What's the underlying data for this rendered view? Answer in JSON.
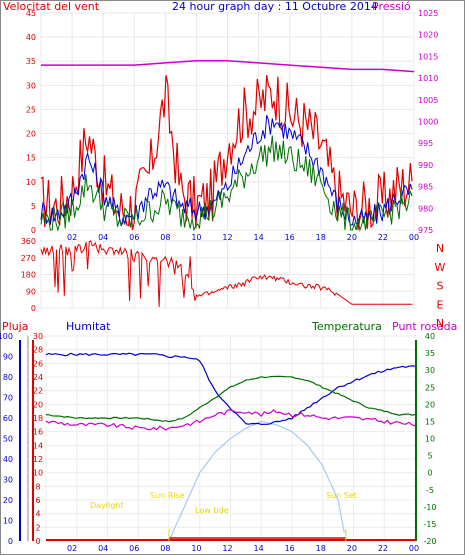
{
  "header": {
    "left_label": "Velocitat del vent",
    "title": "24 hour graph day : 11 Octubre 2014",
    "right_label": "Pressió"
  },
  "colors": {
    "red": "#e00000",
    "blue": "#0000cc",
    "green": "#007000",
    "magenta": "#cc00cc",
    "yellow": "#e8d800",
    "lightblue": "#a8c8f0",
    "border": "#888888"
  },
  "x_ticks": [
    "02",
    "04",
    "06",
    "08",
    "10",
    "12",
    "14",
    "16",
    "18",
    "20",
    "22",
    "00"
  ],
  "wind_panel": {
    "y_left_ticks": [
      "0",
      "5",
      "10",
      "15",
      "20",
      "25",
      "30",
      "35",
      "40",
      "45"
    ],
    "y_right_ticks": [
      "975",
      "980",
      "985",
      "990",
      "995",
      "1000",
      "1005",
      "1010",
      "1015",
      "1020",
      "1025"
    ]
  },
  "dir_panel": {
    "y_left_ticks": [
      "360",
      "270",
      "180",
      "90",
      "0"
    ],
    "compass": [
      "N",
      "W",
      "S",
      "E",
      "N"
    ]
  },
  "bottom_panel": {
    "labels": {
      "rain": "Pluja",
      "humidity": "Humitat",
      "temperature": "Temperatura",
      "dewpoint": "Punt rosada"
    },
    "hum_ticks": [
      "0",
      "10",
      "20",
      "30",
      "40",
      "50",
      "60",
      "70",
      "80",
      "90",
      "100"
    ],
    "rain_ticks": [
      "0",
      "2",
      "4",
      "6",
      "8",
      "10",
      "12",
      "14",
      "16",
      "18",
      "20",
      "22",
      "24",
      "26",
      "28",
      "30"
    ],
    "temp_ticks": [
      "-20",
      "-15",
      "-10",
      "-5",
      "0",
      "5",
      "10",
      "15",
      "20",
      "25",
      "30",
      "35",
      "40"
    ],
    "annotations": {
      "daylight": "Daylight",
      "sun_rise": "Sun Rise",
      "sun_set": "Sun Set",
      "low_tide": "Low tide"
    }
  },
  "chart_data": [
    {
      "type": "line",
      "title": "24 hour graph day : 11 Octubre 2014",
      "x_range": [
        0,
        24
      ],
      "ylim_left": [
        0,
        45
      ],
      "ylim_right": [
        975,
        1025
      ],
      "series": [
        {
          "name": "Velocitat del vent",
          "axis": "left",
          "x": [
            0,
            1,
            2,
            3,
            4,
            5,
            6,
            7,
            8,
            9,
            10,
            11,
            12,
            13,
            14,
            15,
            16,
            17,
            18,
            19,
            20,
            21,
            22,
            23,
            24
          ],
          "values": [
            6,
            5,
            8,
            20,
            10,
            4,
            5,
            12,
            28,
            8,
            5,
            7,
            18,
            24,
            26,
            29,
            24,
            22,
            18,
            8,
            4,
            5,
            6,
            9,
            10
          ]
        },
        {
          "name": "gust_blue",
          "axis": "left",
          "x": [
            0,
            1,
            2,
            3,
            4,
            5,
            6,
            7,
            8,
            9,
            10,
            11,
            12,
            13,
            14,
            15,
            16,
            17,
            18,
            19,
            20,
            21,
            22,
            23,
            24
          ],
          "values": [
            4,
            3,
            6,
            15,
            8,
            3,
            3,
            8,
            9,
            5,
            4,
            5,
            9,
            15,
            20,
            23,
            20,
            17,
            13,
            6,
            2,
            2,
            4,
            7,
            8
          ]
        },
        {
          "name": "avg_green",
          "axis": "left",
          "x": [
            0,
            1,
            2,
            3,
            4,
            5,
            6,
            7,
            8,
            9,
            10,
            11,
            12,
            13,
            14,
            15,
            16,
            17,
            18,
            19,
            20,
            21,
            22,
            23,
            24
          ],
          "values": [
            2,
            2,
            4,
            10,
            5,
            2,
            2,
            4,
            6,
            3,
            3,
            4,
            7,
            11,
            15,
            17,
            15,
            13,
            10,
            4,
            1,
            1,
            3,
            5,
            6
          ]
        },
        {
          "name": "Pressió",
          "axis": "right",
          "x": [
            0,
            2,
            4,
            6,
            8,
            10,
            12,
            14,
            16,
            18,
            20,
            22,
            24
          ],
          "values": [
            1013,
            1013,
            1013,
            1013,
            1013.5,
            1014,
            1014,
            1013.5,
            1013,
            1012.5,
            1012,
            1012,
            1011.5
          ]
        }
      ]
    },
    {
      "type": "scatter",
      "x_range": [
        0,
        24
      ],
      "ylim": [
        0,
        360
      ],
      "series": [
        {
          "name": "wind_direction",
          "x": [
            0,
            1,
            2,
            3,
            4,
            5,
            6,
            7,
            8,
            9,
            10,
            11,
            12,
            13,
            14,
            15,
            16,
            17,
            18,
            19,
            20,
            21,
            22,
            23,
            24
          ],
          "values": [
            300,
            320,
            300,
            340,
            310,
            320,
            280,
            260,
            250,
            240,
            60,
            80,
            110,
            130,
            170,
            160,
            140,
            120,
            110,
            80,
            20,
            20,
            20,
            20,
            20
          ]
        }
      ]
    },
    {
      "type": "line",
      "x_range": [
        0,
        24
      ],
      "ylim_humidity": [
        0,
        100
      ],
      "ylim_temperature": [
        -20,
        40
      ],
      "ylim_rain": [
        0,
        30
      ],
      "series": [
        {
          "name": "Humitat",
          "axis": "humidity",
          "x": [
            0,
            2,
            4,
            6,
            7,
            8,
            9,
            10,
            11,
            12,
            13,
            14,
            15,
            16,
            17,
            18,
            19,
            20,
            21,
            22,
            23,
            24
          ],
          "values": [
            91,
            91,
            91,
            91,
            91,
            90,
            90,
            88,
            73,
            65,
            57,
            57,
            58,
            60,
            65,
            70,
            75,
            78,
            81,
            83,
            85,
            85
          ]
        },
        {
          "name": "Temperatura",
          "axis": "temperature",
          "x": [
            0,
            2,
            4,
            6,
            8,
            9,
            10,
            11,
            12,
            13,
            14,
            15,
            16,
            17,
            18,
            19,
            20,
            21,
            22,
            23,
            24
          ],
          "values": [
            17,
            16,
            16,
            16,
            15,
            16,
            19,
            22,
            25,
            27,
            28,
            28,
            28,
            27,
            25,
            23,
            21,
            19,
            18,
            17,
            17
          ]
        },
        {
          "name": "Punt rosada",
          "axis": "temperature",
          "x": [
            0,
            2,
            4,
            6,
            8,
            10,
            11,
            12,
            13,
            14,
            15,
            16,
            17,
            18,
            20,
            22,
            24
          ],
          "values": [
            15,
            14,
            14,
            13,
            13,
            15,
            17,
            18,
            18,
            17,
            18,
            17,
            17,
            16,
            16,
            15,
            14
          ]
        },
        {
          "name": "Pluja",
          "axis": "rain",
          "x": [
            0,
            24
          ],
          "values": [
            0,
            0
          ]
        },
        {
          "name": "solar",
          "axis": "temperature",
          "x": [
            8,
            9,
            10,
            11,
            12,
            13,
            14,
            15,
            16,
            17,
            18,
            19,
            19.5
          ],
          "values": [
            -20,
            -10,
            0,
            6,
            10,
            13,
            15,
            14,
            12,
            8,
            2,
            -8,
            -20
          ]
        }
      ]
    }
  ]
}
